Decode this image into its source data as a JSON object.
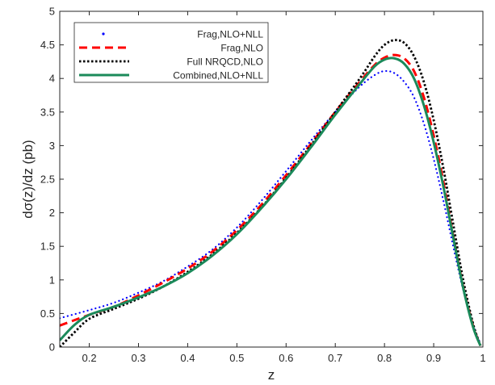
{
  "chart_data": {
    "type": "line",
    "title": "",
    "xlabel": "z",
    "ylabel": "dσ(z)/dz  (pb)",
    "xlim": [
      0.14,
      1.0
    ],
    "ylim": [
      0,
      5
    ],
    "xticks": [
      "0.2",
      "0.3",
      "0.4",
      "0.5",
      "0.6",
      "0.7",
      "0.8",
      "0.9",
      "1"
    ],
    "yticks": [
      "0",
      "0.5",
      "1",
      "1.5",
      "2",
      "2.5",
      "3",
      "3.5",
      "4",
      "4.5",
      "5"
    ],
    "grid": false,
    "legend_position": "top-left",
    "series": [
      {
        "name": "Frag,NLO+NLL",
        "color": "#0000ff",
        "style": "dotted",
        "points": [
          [
            0.14,
            0.43
          ],
          [
            0.2,
            0.55
          ],
          [
            0.25,
            0.66
          ],
          [
            0.3,
            0.81
          ],
          [
            0.35,
            0.98
          ],
          [
            0.4,
            1.2
          ],
          [
            0.45,
            1.45
          ],
          [
            0.5,
            1.78
          ],
          [
            0.55,
            2.18
          ],
          [
            0.6,
            2.62
          ],
          [
            0.65,
            3.07
          ],
          [
            0.7,
            3.5
          ],
          [
            0.75,
            3.88
          ],
          [
            0.78,
            4.05
          ],
          [
            0.8,
            4.11
          ],
          [
            0.82,
            4.08
          ],
          [
            0.84,
            3.95
          ],
          [
            0.86,
            3.72
          ],
          [
            0.88,
            3.33
          ],
          [
            0.9,
            2.8
          ],
          [
            0.92,
            2.17
          ],
          [
            0.94,
            1.49
          ],
          [
            0.96,
            0.85
          ],
          [
            0.98,
            0.33
          ],
          [
            0.995,
            0.05
          ]
        ]
      },
      {
        "name": "Frag,NLO",
        "color": "#ff0000",
        "style": "dashed",
        "points": [
          [
            0.14,
            0.32
          ],
          [
            0.2,
            0.48
          ],
          [
            0.25,
            0.6
          ],
          [
            0.3,
            0.77
          ],
          [
            0.35,
            0.96
          ],
          [
            0.4,
            1.17
          ],
          [
            0.45,
            1.42
          ],
          [
            0.5,
            1.74
          ],
          [
            0.55,
            2.12
          ],
          [
            0.6,
            2.56
          ],
          [
            0.65,
            3.02
          ],
          [
            0.7,
            3.5
          ],
          [
            0.75,
            3.95
          ],
          [
            0.78,
            4.2
          ],
          [
            0.8,
            4.31
          ],
          [
            0.82,
            4.35
          ],
          [
            0.84,
            4.3
          ],
          [
            0.86,
            4.11
          ],
          [
            0.88,
            3.72
          ],
          [
            0.9,
            3.15
          ],
          [
            0.92,
            2.45
          ],
          [
            0.94,
            1.65
          ],
          [
            0.96,
            0.9
          ],
          [
            0.98,
            0.32
          ],
          [
            0.995,
            0.02
          ]
        ]
      },
      {
        "name": "Full NRQCD,NLO",
        "color": "#000000",
        "style": "dotted-thick",
        "points": [
          [
            0.14,
            0.0
          ],
          [
            0.17,
            0.22
          ],
          [
            0.2,
            0.42
          ],
          [
            0.25,
            0.57
          ],
          [
            0.3,
            0.72
          ],
          [
            0.35,
            0.9
          ],
          [
            0.4,
            1.12
          ],
          [
            0.45,
            1.38
          ],
          [
            0.5,
            1.7
          ],
          [
            0.55,
            2.08
          ],
          [
            0.6,
            2.52
          ],
          [
            0.65,
            3.0
          ],
          [
            0.7,
            3.5
          ],
          [
            0.75,
            4.0
          ],
          [
            0.78,
            4.33
          ],
          [
            0.8,
            4.5
          ],
          [
            0.82,
            4.57
          ],
          [
            0.84,
            4.53
          ],
          [
            0.86,
            4.33
          ],
          [
            0.88,
            3.95
          ],
          [
            0.9,
            3.38
          ],
          [
            0.92,
            2.65
          ],
          [
            0.94,
            1.82
          ],
          [
            0.96,
            1.0
          ],
          [
            0.98,
            0.35
          ],
          [
            0.995,
            0.02
          ]
        ]
      },
      {
        "name": "Combined,NLO+NLL",
        "color": "#1b8a5a",
        "style": "solid",
        "points": [
          [
            0.14,
            0.1
          ],
          [
            0.17,
            0.33
          ],
          [
            0.2,
            0.48
          ],
          [
            0.25,
            0.6
          ],
          [
            0.3,
            0.74
          ],
          [
            0.35,
            0.9
          ],
          [
            0.4,
            1.1
          ],
          [
            0.45,
            1.36
          ],
          [
            0.5,
            1.68
          ],
          [
            0.55,
            2.07
          ],
          [
            0.6,
            2.5
          ],
          [
            0.65,
            2.97
          ],
          [
            0.7,
            3.46
          ],
          [
            0.75,
            3.92
          ],
          [
            0.78,
            4.18
          ],
          [
            0.8,
            4.28
          ],
          [
            0.82,
            4.3
          ],
          [
            0.84,
            4.22
          ],
          [
            0.86,
            4.0
          ],
          [
            0.88,
            3.6
          ],
          [
            0.9,
            3.05
          ],
          [
            0.92,
            2.38
          ],
          [
            0.94,
            1.62
          ],
          [
            0.96,
            0.88
          ],
          [
            0.98,
            0.3
          ],
          [
            0.995,
            0.02
          ]
        ]
      }
    ]
  }
}
